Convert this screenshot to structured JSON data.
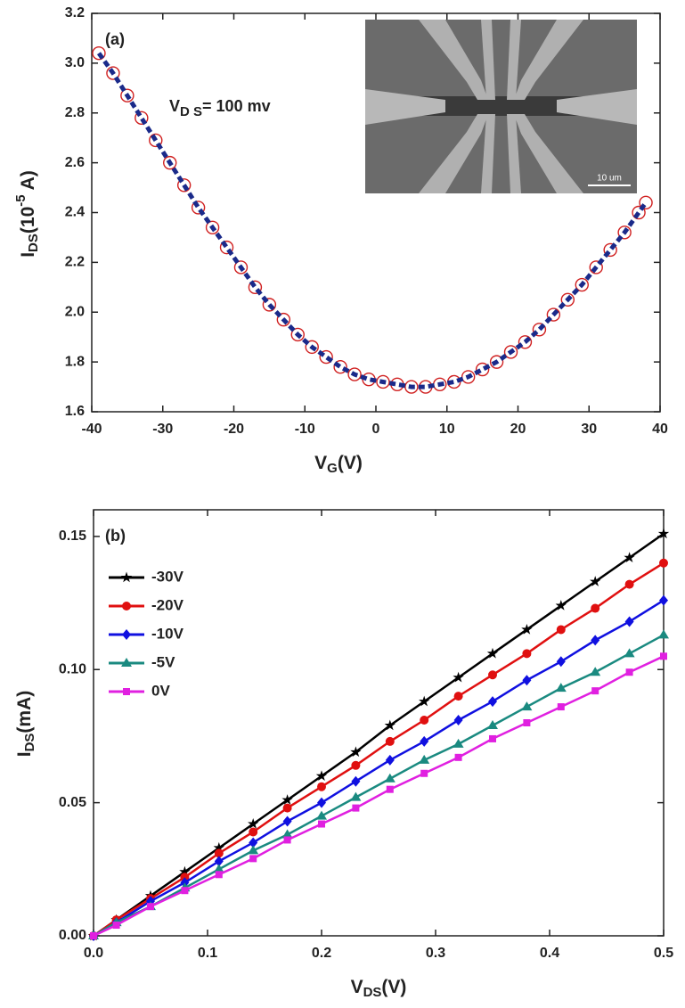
{
  "chart_data": [
    {
      "type": "line",
      "annotations": [
        "(a)"
      ],
      "vds_label": [
        "V",
        "D S",
        "= 100 mv"
      ],
      "xlabel": [
        "V",
        "G",
        "(V)"
      ],
      "ylabel": [
        "I",
        "DS",
        "(10",
        "-5",
        " A)"
      ],
      "inset_label": "10 um",
      "x": [
        -39,
        -37,
        -35,
        -33,
        -31,
        -29,
        -27,
        -25,
        -23,
        -21,
        -19,
        -17,
        -15,
        -13,
        -11,
        -9,
        -7,
        -5,
        -3,
        -1,
        1,
        3,
        5,
        7,
        9,
        11,
        13,
        15,
        17,
        19,
        21,
        23,
        25,
        27,
        29,
        31,
        33,
        35,
        37,
        38
      ],
      "values": [
        3.04,
        2.96,
        2.87,
        2.78,
        2.69,
        2.6,
        2.51,
        2.42,
        2.34,
        2.26,
        2.18,
        2.1,
        2.03,
        1.97,
        1.91,
        1.86,
        1.82,
        1.78,
        1.75,
        1.73,
        1.72,
        1.71,
        1.7,
        1.7,
        1.71,
        1.72,
        1.74,
        1.77,
        1.8,
        1.84,
        1.88,
        1.93,
        1.99,
        2.05,
        2.11,
        2.18,
        2.25,
        2.32,
        2.4,
        2.44
      ],
      "line_color": "#1a2a8a",
      "marker_color": "#d02020",
      "marker": "open-circle",
      "line_style": "dashed",
      "xlim": [
        -40,
        40
      ],
      "xticks": [
        -40,
        -30,
        -20,
        -10,
        0,
        10,
        20,
        30,
        40
      ],
      "ylim": [
        1.6,
        3.2
      ],
      "yticks": [
        1.6,
        1.8,
        {
          "value": 2,
          "label": "2.0"
        },
        2.2,
        2.4,
        2.6,
        2.8,
        {
          "value": 3,
          "label": "3.0"
        },
        3.2
      ]
    },
    {
      "type": "line",
      "annotations": [
        "(b)"
      ],
      "xlabel": [
        "V",
        "DS",
        "(V)"
      ],
      "ylabel": [
        "I",
        "DS",
        "(mA)"
      ],
      "legend": "upper left",
      "x": [
        0,
        0.02,
        0.05,
        0.08,
        0.11,
        0.14,
        0.17,
        0.2,
        0.23,
        0.26,
        0.29,
        0.32,
        0.35,
        0.38,
        0.41,
        0.44,
        0.47,
        0.5
      ],
      "series": [
        {
          "name": "-30V",
          "color": "#000000",
          "marker": "star",
          "values": [
            0,
            0.006,
            0.015,
            0.024,
            0.033,
            0.042,
            0.051,
            0.06,
            0.069,
            0.079,
            0.088,
            0.097,
            0.106,
            0.115,
            0.124,
            0.133,
            0.142,
            0.151
          ]
        },
        {
          "name": "-20V",
          "color": "#e01010",
          "marker": "circle",
          "values": [
            0,
            0.006,
            0.014,
            0.022,
            0.031,
            0.039,
            0.048,
            0.056,
            0.064,
            0.073,
            0.081,
            0.09,
            0.098,
            0.106,
            0.115,
            0.123,
            0.132,
            0.14
          ]
        },
        {
          "name": "-10V",
          "color": "#1010e0",
          "marker": "diamond",
          "values": [
            0,
            0.005,
            0.013,
            0.02,
            0.028,
            0.035,
            0.043,
            0.05,
            0.058,
            0.066,
            0.073,
            0.081,
            0.088,
            0.096,
            0.103,
            0.111,
            0.118,
            0.126
          ]
        },
        {
          "name": "-5V",
          "color": "#1a8a80",
          "marker": "triangle",
          "values": [
            0,
            0.005,
            0.011,
            0.018,
            0.025,
            0.032,
            0.038,
            0.045,
            0.052,
            0.059,
            0.066,
            0.072,
            0.079,
            0.086,
            0.093,
            0.099,
            0.106,
            0.113
          ]
        },
        {
          "name": "0V",
          "color": "#e020e0",
          "marker": "square",
          "values": [
            0,
            0.004,
            0.011,
            0.017,
            0.023,
            0.029,
            0.036,
            0.042,
            0.048,
            0.055,
            0.061,
            0.067,
            0.074,
            0.08,
            0.086,
            0.092,
            0.099,
            0.105
          ]
        }
      ],
      "xlim": [
        0,
        0.5
      ],
      "xticks": [
        {
          "value": 0,
          "label": "0.0"
        },
        0.1,
        0.2,
        0.3,
        0.4,
        0.5
      ],
      "ylim": [
        0,
        0.16
      ],
      "yticks": [
        {
          "value": 0,
          "label": "0.00"
        },
        {
          "value": 0.05,
          "label": "0.05"
        },
        {
          "value": 0.1,
          "label": "0.10"
        },
        {
          "value": 0.15,
          "label": "0.15"
        }
      ]
    }
  ]
}
